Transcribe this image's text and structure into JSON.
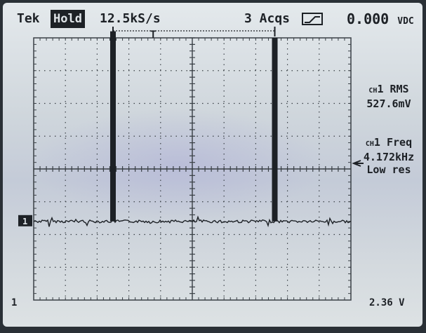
{
  "status_bar": {
    "brand": "Tek",
    "mode": "Hold",
    "sample_rate": "12.5kS/s",
    "acquisitions": "3 Acqs",
    "trigger_icon": "trigger-slope-icon",
    "dvm_value": "0.000",
    "dvm_unit": "VDC"
  },
  "measurements": {
    "rms": {
      "channel": "CH",
      "label": "1 RMS",
      "value": "527.6mV"
    },
    "freq": {
      "channel": "CH",
      "label": "1 Freq",
      "value": "4.172kHz",
      "note": "Low res"
    }
  },
  "markers": {
    "trigger_label": "T",
    "ground_label": "1"
  },
  "bottom": {
    "left": "1",
    "right": "2.36 V"
  },
  "colors": {
    "trace": "#1d2126",
    "grid": "#3a4046",
    "screen": "#d6dce0"
  },
  "waveform": {
    "pulses": [
      {
        "division_x": 2.5,
        "height_div": 5.8
      },
      {
        "division_x": 7.6,
        "height_div": 5.6
      }
    ],
    "baseline_div": 2.4
  }
}
